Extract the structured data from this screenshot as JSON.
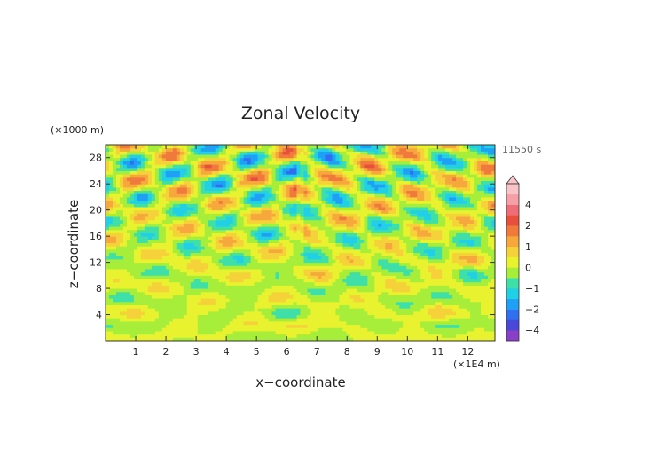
{
  "chart_data": {
    "type": "heatmap",
    "title": "Zonal Velocity",
    "xlabel": "x−coordinate",
    "ylabel": "z−coordinate",
    "x_unit": "(×1E4 m)",
    "y_unit": "(×1000 m)",
    "time_label": "11550 s",
    "xlim": [
      0,
      12.9
    ],
    "ylim": [
      0,
      30
    ],
    "x_ticks": [
      1,
      2,
      3,
      4,
      5,
      6,
      7,
      8,
      9,
      10,
      11,
      12
    ],
    "y_ticks": [
      4,
      8,
      12,
      16,
      20,
      24,
      28
    ],
    "colorbar": {
      "levels": [
        -5,
        -4,
        -3,
        -2,
        -1.5,
        -1,
        -0.5,
        0,
        0.5,
        1,
        1.5,
        2,
        3,
        4,
        5
      ],
      "colors": [
        "#8a3fc8",
        "#4a48d8",
        "#2f6ff0",
        "#1fa0f5",
        "#22d0e6",
        "#3fe0a8",
        "#a6ee3a",
        "#e8f22e",
        "#f6d23a",
        "#f6a83c",
        "#ef7a3c",
        "#e8503c",
        "#ee6e78",
        "#f4a0a6",
        "#f8c4c8"
      ],
      "tick_values": [
        4,
        2,
        1,
        0,
        -1,
        -2,
        -4
      ],
      "tick_labels": [
        "4",
        "2",
        "1",
        "0",
        "−1",
        "−2",
        "−4"
      ]
    }
  }
}
